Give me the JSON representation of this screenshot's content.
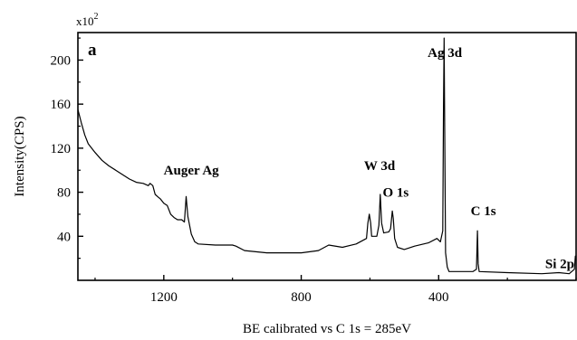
{
  "chart_data": {
    "type": "line",
    "panel_label": "a",
    "xlabel": "BE calibrated vs C 1s = 285eV",
    "ylabel": "Intensity(CPS)",
    "y_multiplier": "x10",
    "y_multiplier_exp": "2",
    "xlim": [
      1450,
      0
    ],
    "ylim": [
      0,
      225
    ],
    "x_reversed": true,
    "grid": false,
    "x_ticks": [
      {
        "value": 1200,
        "label": "1200"
      },
      {
        "value": 800,
        "label": "800"
      },
      {
        "value": 400,
        "label": "400"
      }
    ],
    "y_ticks": [
      {
        "value": 200,
        "label": "200"
      },
      {
        "value": 160,
        "label": "160"
      },
      {
        "value": 120,
        "label": "120"
      },
      {
        "value": 80,
        "label": "80"
      },
      {
        "value": 40,
        "label": "40"
      }
    ],
    "series": [
      {
        "points": [
          [
            1450,
            155
          ],
          [
            1440,
            143
          ],
          [
            1430,
            132
          ],
          [
            1420,
            124
          ],
          [
            1400,
            116
          ],
          [
            1380,
            109
          ],
          [
            1360,
            104
          ],
          [
            1340,
            100
          ],
          [
            1320,
            96
          ],
          [
            1300,
            92
          ],
          [
            1280,
            89
          ],
          [
            1260,
            88
          ],
          [
            1245,
            86
          ],
          [
            1240,
            88
          ],
          [
            1232,
            86
          ],
          [
            1225,
            78
          ],
          [
            1218,
            76
          ],
          [
            1210,
            74
          ],
          [
            1200,
            70
          ],
          [
            1190,
            68
          ],
          [
            1180,
            60
          ],
          [
            1170,
            57
          ],
          [
            1160,
            55
          ],
          [
            1148,
            55
          ],
          [
            1140,
            53
          ],
          [
            1135,
            76
          ],
          [
            1130,
            58
          ],
          [
            1120,
            42
          ],
          [
            1110,
            35
          ],
          [
            1100,
            33
          ],
          [
            1050,
            32
          ],
          [
            1000,
            32
          ],
          [
            990,
            31
          ],
          [
            965,
            27
          ],
          [
            900,
            25
          ],
          [
            800,
            25
          ],
          [
            750,
            27
          ],
          [
            720,
            32
          ],
          [
            680,
            30
          ],
          [
            640,
            33
          ],
          [
            610,
            38
          ],
          [
            606,
            52
          ],
          [
            602,
            60
          ],
          [
            598,
            52
          ],
          [
            595,
            40
          ],
          [
            580,
            40
          ],
          [
            574,
            50
          ],
          [
            570,
            78
          ],
          [
            566,
            52
          ],
          [
            560,
            43
          ],
          [
            545,
            44
          ],
          [
            540,
            47
          ],
          [
            535,
            63
          ],
          [
            532,
            56
          ],
          [
            528,
            38
          ],
          [
            520,
            30
          ],
          [
            500,
            28
          ],
          [
            470,
            31
          ],
          [
            430,
            34
          ],
          [
            405,
            38
          ],
          [
            395,
            35
          ],
          [
            388,
            45
          ],
          [
            386,
            155
          ],
          [
            384,
            220
          ],
          [
            382,
            120
          ],
          [
            380,
            25
          ],
          [
            375,
            12
          ],
          [
            370,
            8
          ],
          [
            330,
            8
          ],
          [
            300,
            8
          ],
          [
            290,
            10
          ],
          [
            287,
            45
          ],
          [
            285,
            15
          ],
          [
            282,
            8
          ],
          [
            200,
            7
          ],
          [
            100,
            6
          ],
          [
            50,
            7
          ],
          [
            20,
            6
          ],
          [
            5,
            10
          ],
          [
            2,
            22
          ],
          [
            0,
            18
          ]
        ]
      }
    ],
    "annotations": [
      {
        "text": "Auger Ag",
        "x": 1120,
        "y": 96
      },
      {
        "text": "W 3d",
        "x": 572,
        "y": 100
      },
      {
        "text": "O 1s",
        "x": 525,
        "y": 76
      },
      {
        "text": "Ag 3d",
        "x": 382,
        "y": 203
      },
      {
        "text": "C 1s",
        "x": 270,
        "y": 59
      },
      {
        "text": "Si 2p",
        "x": 10,
        "y": 11
      }
    ]
  }
}
